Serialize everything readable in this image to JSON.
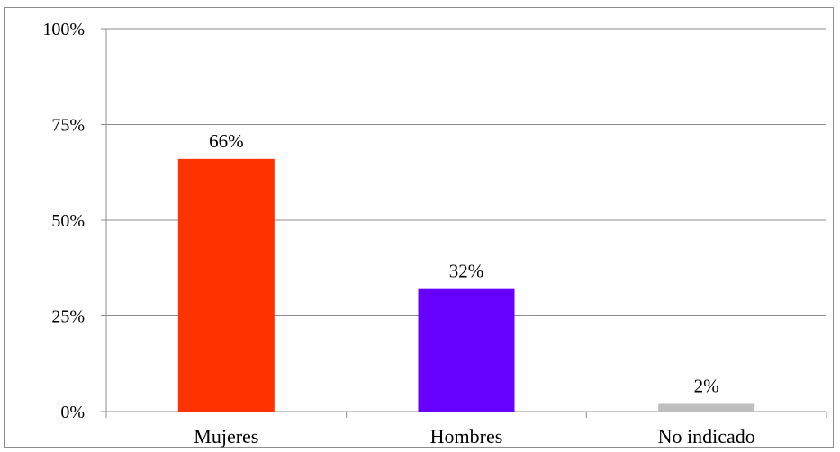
{
  "chart_data": {
    "type": "bar",
    "categories": [
      "Mujeres",
      "Hombres",
      "No indicado"
    ],
    "values": [
      66,
      32,
      2
    ],
    "data_labels": [
      "66%",
      "32%",
      "2%"
    ],
    "colors": [
      "#ff3300",
      "#6600ff",
      "#bfbfbf"
    ],
    "yticks": [
      0,
      25,
      50,
      75,
      100
    ],
    "ytick_labels": [
      "0%",
      "25%",
      "50%",
      "75%",
      "100%"
    ],
    "ylim": [
      0,
      100
    ],
    "grid": true,
    "legend": "none",
    "title": "",
    "xlabel": "",
    "ylabel": ""
  }
}
